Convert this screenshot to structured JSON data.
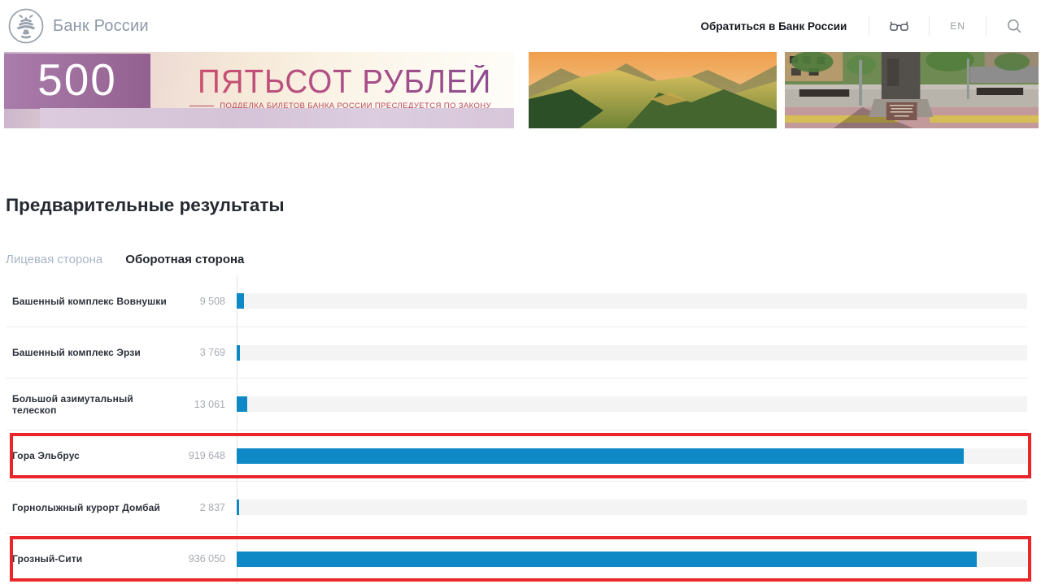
{
  "header": {
    "logo_text": "Банк России",
    "contact_label": "Обратиться в Банк России",
    "lang": "EN",
    "icons": [
      "bank-eagle-logo-icon",
      "accessibility-glasses-icon",
      "search-icon"
    ]
  },
  "banner": {
    "banknote": {
      "denomination": "500",
      "title": "ПЯТЬСОТ РУБЛЕЙ",
      "subtitle": "ПОДДЕЛКА БИЛЕТОВ БАНКА РОССИИ ПРЕСЛЕДУЕТСЯ ПО ЗАКОНУ"
    },
    "photos": [
      "mountain-landscape-photo",
      "city-monument-photo"
    ]
  },
  "main": {
    "title": "Предварительные результаты",
    "tabs": [
      {
        "label": "Лицевая сторона",
        "active": false
      },
      {
        "label": "Оборотная сторона",
        "active": true
      }
    ]
  },
  "chart_data": {
    "type": "bar",
    "orientation": "horizontal",
    "title": "Предварительные результаты",
    "subtitle_tab": "Оборотная сторона",
    "categories": [
      "Башенный комплекс Вовнушки",
      "Башенный комплекс Эрзи",
      "Большой азимутальный телескоп",
      "Гора Эльбрус",
      "Горнолыжный курорт Домбай",
      "Грозный-Сити"
    ],
    "values": [
      9508,
      3769,
      13061,
      919648,
      2837,
      936050
    ],
    "value_labels": [
      "9 508",
      "3 769",
      "13 061",
      "919 648",
      "2 837",
      "936 050"
    ],
    "highlighted_categories": [
      "Гора Эльбрус",
      "Грозный-Сити"
    ],
    "xlim": [
      0,
      1000000
    ],
    "grid": false,
    "legend": false,
    "bar_color": "#0e89c6",
    "track_color": "#f4f4f4",
    "highlight_box_color": "#e9262a"
  }
}
